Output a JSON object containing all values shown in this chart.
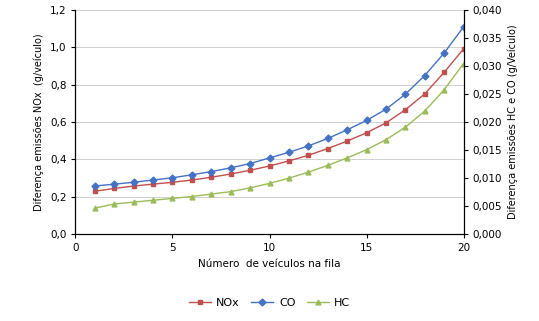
{
  "x": [
    1,
    2,
    3,
    4,
    5,
    6,
    7,
    8,
    9,
    10,
    11,
    12,
    13,
    14,
    15,
    16,
    17,
    18,
    19,
    20
  ],
  "NOx": [
    0.23,
    0.245,
    0.258,
    0.268,
    0.278,
    0.29,
    0.305,
    0.322,
    0.342,
    0.365,
    0.392,
    0.422,
    0.458,
    0.498,
    0.542,
    0.595,
    0.665,
    0.75,
    0.865,
    0.99
  ],
  "CO": [
    0.258,
    0.268,
    0.278,
    0.29,
    0.302,
    0.318,
    0.335,
    0.355,
    0.378,
    0.408,
    0.438,
    0.472,
    0.512,
    0.558,
    0.608,
    0.668,
    0.748,
    0.848,
    0.968,
    1.108
  ],
  "HC": [
    0.14,
    0.162,
    0.172,
    0.182,
    0.192,
    0.202,
    0.215,
    0.228,
    0.248,
    0.272,
    0.3,
    0.332,
    0.368,
    0.408,
    0.452,
    0.505,
    0.572,
    0.658,
    0.772,
    0.912
  ],
  "NOx_color": "#C0504D",
  "CO_color": "#4472C4",
  "HC_color": "#9BBB59",
  "ylabel_left": "Diferença emissões NOx  (g/veículo)",
  "ylabel_right": "Diferença emissões HC e CO (g/Veículo)",
  "xlabel": "Número  de veículos na fila",
  "ylim_left": [
    0.0,
    1.2
  ],
  "ylim_right": [
    0.0,
    0.04
  ],
  "yticks_left": [
    0.0,
    0.2,
    0.4,
    0.6,
    0.8,
    1.0,
    1.2
  ],
  "yticks_right": [
    0.0,
    0.005,
    0.01,
    0.015,
    0.02,
    0.025,
    0.03,
    0.035,
    0.04
  ],
  "xticks": [
    0,
    5,
    10,
    15,
    20
  ],
  "legend_labels": [
    "NOx",
    "CO",
    "HC"
  ],
  "background_color": "#FFFFFF",
  "grid_color": "#D0D0D0"
}
